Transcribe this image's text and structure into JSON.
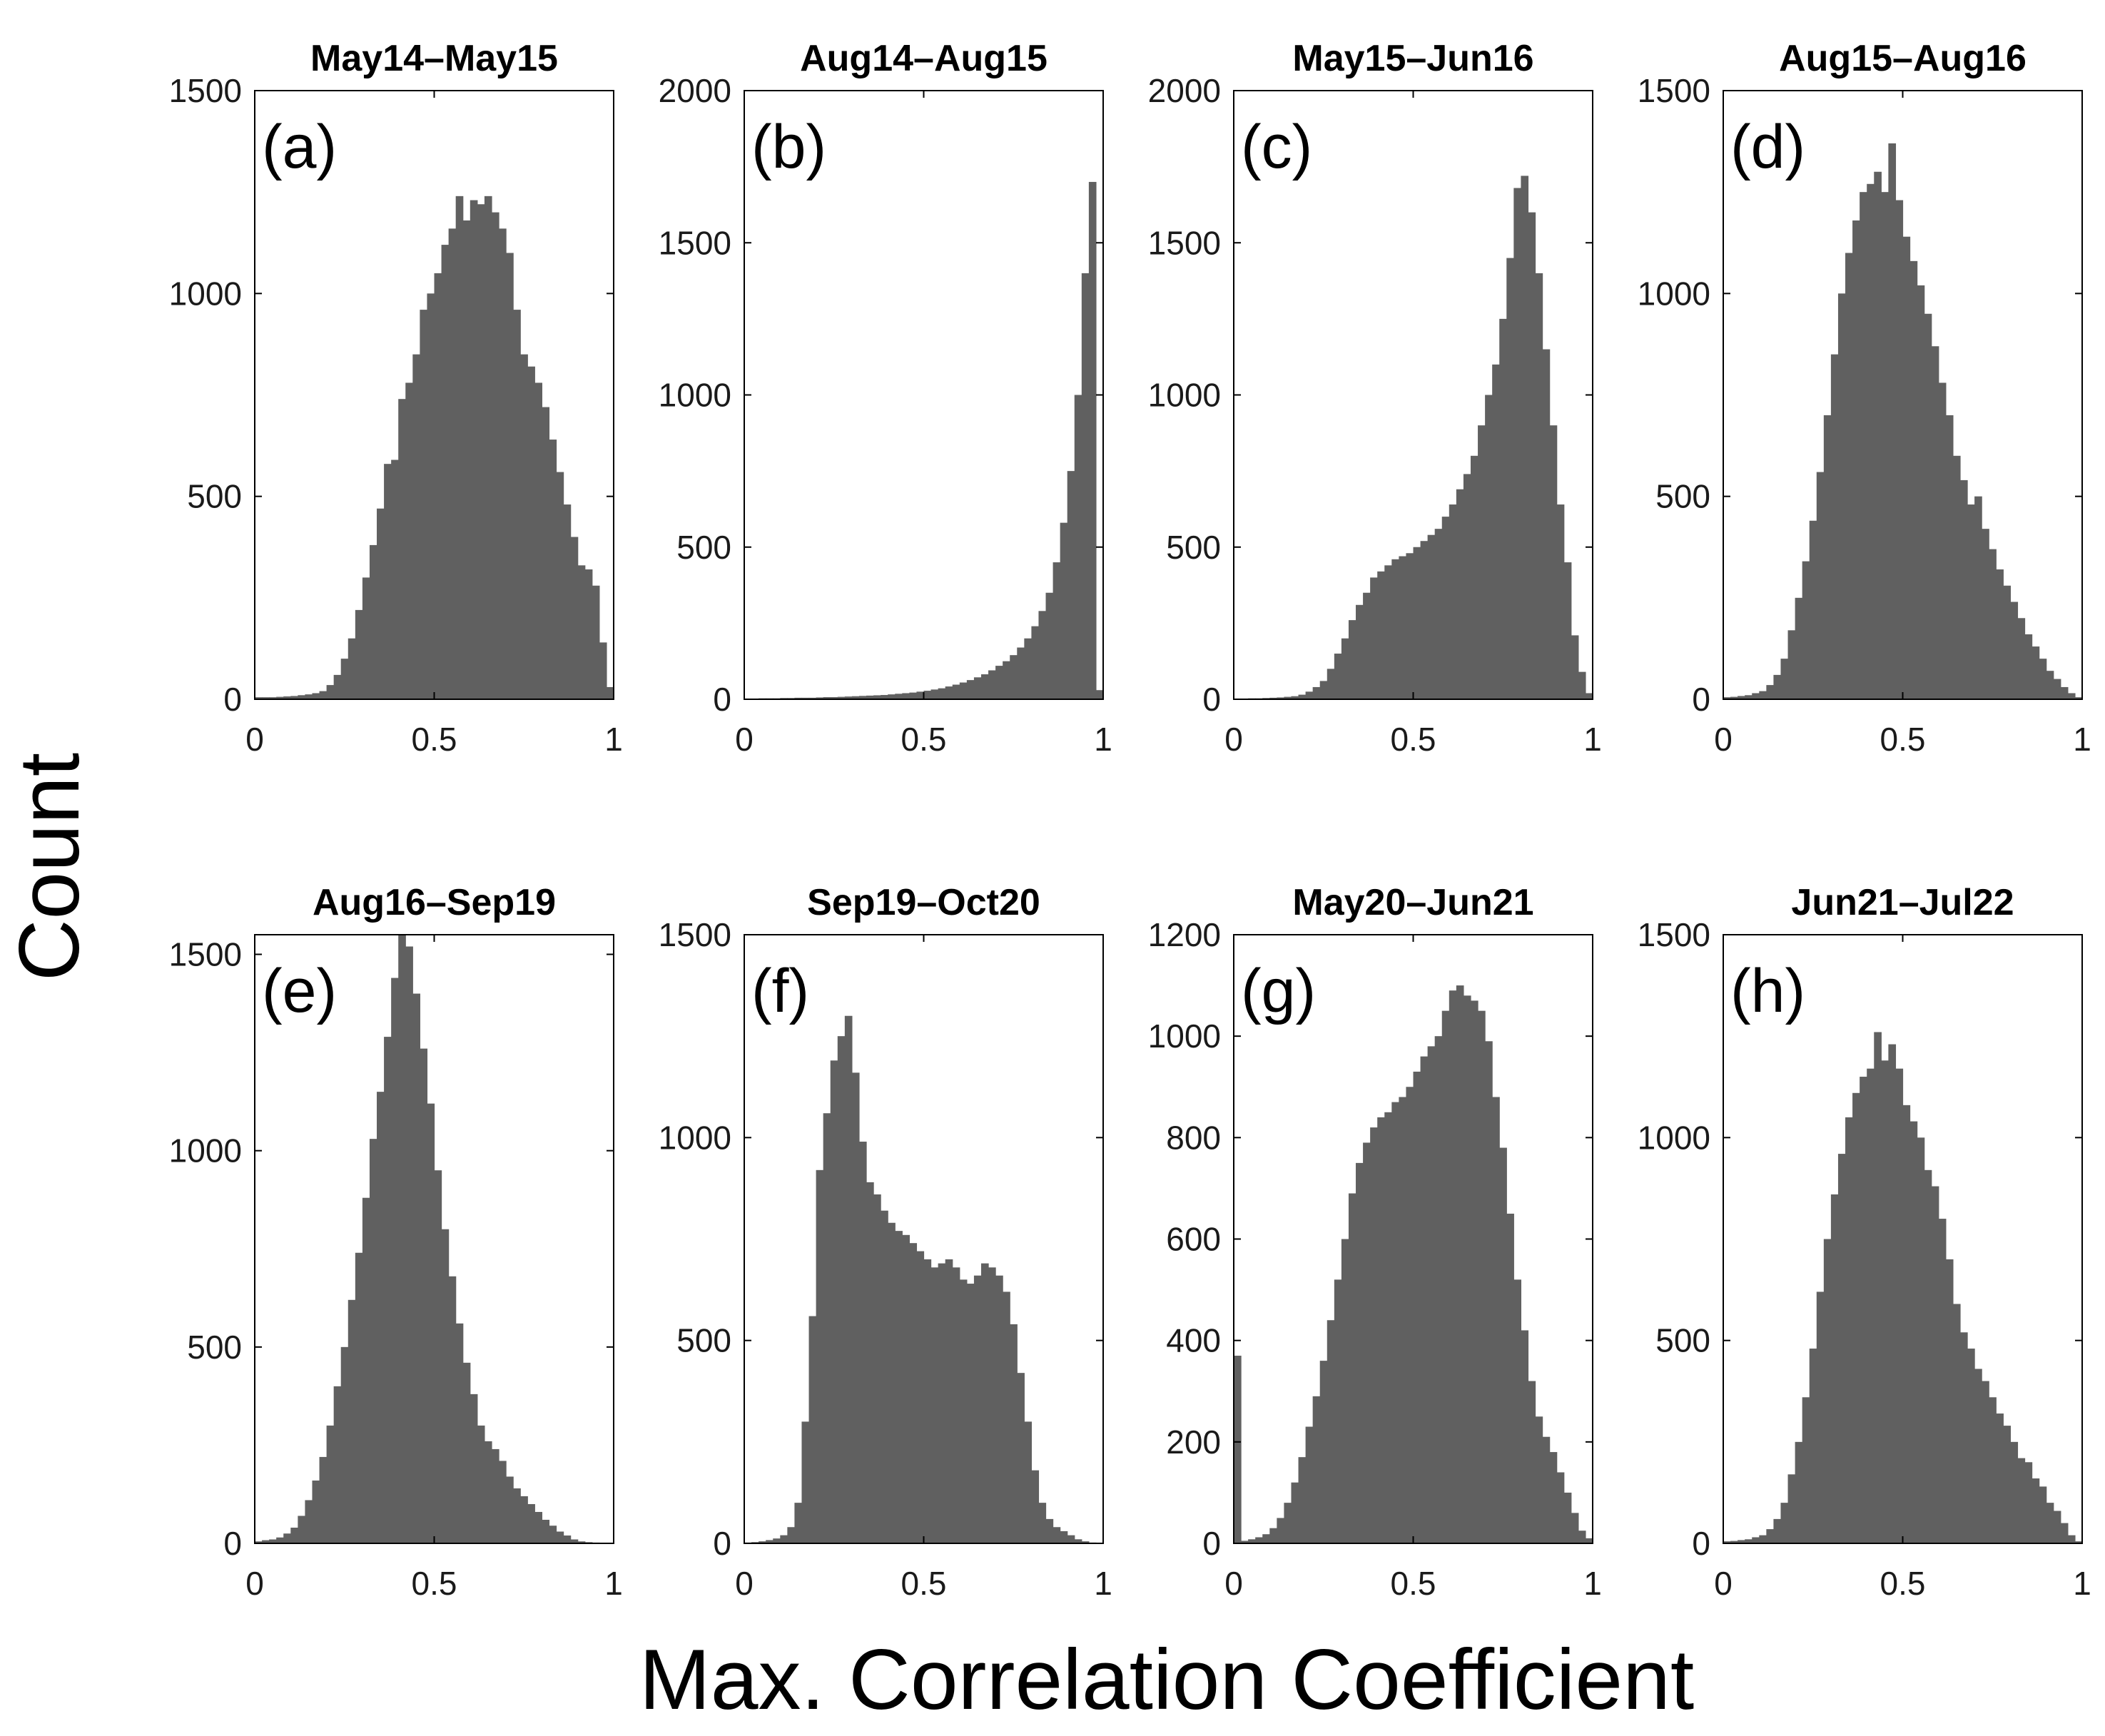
{
  "figure": {
    "ylabel": "Count",
    "xlabel": "Max. Correlation Coefficient"
  },
  "colors": {
    "bar": "#606060",
    "axis": "#000000",
    "text": "#000000"
  },
  "chart_data": [
    {
      "type": "bar",
      "panel": "(a)",
      "title": "May14–May15",
      "xlim": [
        0,
        1
      ],
      "ylim": [
        0,
        1500
      ],
      "xticks": [
        0,
        0.5,
        1
      ],
      "xtick_labels": [
        "0",
        "0.5",
        "1"
      ],
      "yticks": [
        0,
        500,
        1000,
        1500
      ],
      "ytick_labels": [
        "0",
        "500",
        "1000",
        "1500"
      ],
      "x": [
        0.01,
        0.03,
        0.05,
        0.07,
        0.09,
        0.11,
        0.13,
        0.15,
        0.17,
        0.19,
        0.21,
        0.23,
        0.25,
        0.27,
        0.29,
        0.31,
        0.33,
        0.35,
        0.37,
        0.39,
        0.41,
        0.43,
        0.45,
        0.47,
        0.49,
        0.51,
        0.53,
        0.55,
        0.57,
        0.59,
        0.61,
        0.63,
        0.65,
        0.67,
        0.69,
        0.71,
        0.73,
        0.75,
        0.77,
        0.79,
        0.81,
        0.83,
        0.85,
        0.87,
        0.89,
        0.91,
        0.93,
        0.95,
        0.97,
        0.99
      ],
      "values": [
        5,
        5,
        5,
        6,
        7,
        8,
        10,
        12,
        15,
        20,
        35,
        60,
        100,
        150,
        220,
        300,
        380,
        470,
        580,
        590,
        740,
        780,
        850,
        960,
        1000,
        1050,
        1120,
        1160,
        1240,
        1180,
        1230,
        1220,
        1240,
        1200,
        1160,
        1100,
        960,
        850,
        820,
        780,
        720,
        640,
        560,
        480,
        400,
        330,
        320,
        280,
        140,
        30
      ]
    },
    {
      "type": "bar",
      "panel": "(b)",
      "title": "Aug14–Aug15",
      "xlim": [
        0,
        1
      ],
      "ylim": [
        0,
        2000
      ],
      "xticks": [
        0,
        0.5,
        1
      ],
      "xtick_labels": [
        "0",
        "0.5",
        "1"
      ],
      "yticks": [
        0,
        500,
        1000,
        1500,
        2000
      ],
      "ytick_labels": [
        "0",
        "500",
        "1000",
        "1500",
        "2000"
      ],
      "x": [
        0.01,
        0.03,
        0.05,
        0.07,
        0.09,
        0.11,
        0.13,
        0.15,
        0.17,
        0.19,
        0.21,
        0.23,
        0.25,
        0.27,
        0.29,
        0.31,
        0.33,
        0.35,
        0.37,
        0.39,
        0.41,
        0.43,
        0.45,
        0.47,
        0.49,
        0.51,
        0.53,
        0.55,
        0.57,
        0.59,
        0.61,
        0.63,
        0.65,
        0.67,
        0.69,
        0.71,
        0.73,
        0.75,
        0.77,
        0.79,
        0.81,
        0.83,
        0.85,
        0.87,
        0.89,
        0.91,
        0.93,
        0.95,
        0.97,
        0.99
      ],
      "values": [
        2,
        2,
        3,
        3,
        3,
        4,
        4,
        5,
        5,
        5,
        6,
        7,
        7,
        8,
        9,
        10,
        11,
        12,
        13,
        14,
        16,
        18,
        20,
        22,
        25,
        28,
        32,
        36,
        42,
        48,
        55,
        63,
        72,
        82,
        95,
        110,
        125,
        145,
        170,
        200,
        240,
        290,
        350,
        450,
        580,
        750,
        1000,
        1400,
        1700,
        30
      ]
    },
    {
      "type": "bar",
      "panel": "(c)",
      "title": "May15–Jun16",
      "xlim": [
        0,
        1
      ],
      "ylim": [
        0,
        2000
      ],
      "xticks": [
        0,
        0.5,
        1
      ],
      "xtick_labels": [
        "0",
        "0.5",
        "1"
      ],
      "yticks": [
        0,
        500,
        1000,
        1500,
        2000
      ],
      "ytick_labels": [
        "0",
        "500",
        "1000",
        "1500",
        "2000"
      ],
      "x": [
        0.01,
        0.03,
        0.05,
        0.07,
        0.09,
        0.11,
        0.13,
        0.15,
        0.17,
        0.19,
        0.21,
        0.23,
        0.25,
        0.27,
        0.29,
        0.31,
        0.33,
        0.35,
        0.37,
        0.39,
        0.41,
        0.43,
        0.45,
        0.47,
        0.49,
        0.51,
        0.53,
        0.55,
        0.57,
        0.59,
        0.61,
        0.63,
        0.65,
        0.67,
        0.69,
        0.71,
        0.73,
        0.75,
        0.77,
        0.79,
        0.81,
        0.83,
        0.85,
        0.87,
        0.89,
        0.91,
        0.93,
        0.95,
        0.97,
        0.99
      ],
      "values": [
        2,
        2,
        3,
        3,
        4,
        5,
        6,
        8,
        10,
        15,
        25,
        40,
        60,
        100,
        150,
        200,
        260,
        310,
        350,
        400,
        420,
        440,
        460,
        470,
        480,
        500,
        520,
        540,
        560,
        600,
        640,
        690,
        740,
        800,
        900,
        1000,
        1100,
        1250,
        1450,
        1680,
        1720,
        1600,
        1400,
        1150,
        900,
        640,
        450,
        210,
        90,
        20
      ]
    },
    {
      "type": "bar",
      "panel": "(d)",
      "title": "Aug15–Aug16",
      "xlim": [
        0,
        1
      ],
      "ylim": [
        0,
        1500
      ],
      "xticks": [
        0,
        0.5,
        1
      ],
      "xtick_labels": [
        "0",
        "0.5",
        "1"
      ],
      "yticks": [
        0,
        500,
        1000,
        1500
      ],
      "ytick_labels": [
        "0",
        "500",
        "1000",
        "1500"
      ],
      "x": [
        0.01,
        0.03,
        0.05,
        0.07,
        0.09,
        0.11,
        0.13,
        0.15,
        0.17,
        0.19,
        0.21,
        0.23,
        0.25,
        0.27,
        0.29,
        0.31,
        0.33,
        0.35,
        0.37,
        0.39,
        0.41,
        0.43,
        0.45,
        0.47,
        0.49,
        0.51,
        0.53,
        0.55,
        0.57,
        0.59,
        0.61,
        0.63,
        0.65,
        0.67,
        0.69,
        0.71,
        0.73,
        0.75,
        0.77,
        0.79,
        0.81,
        0.83,
        0.85,
        0.87,
        0.89,
        0.91,
        0.93,
        0.95,
        0.97,
        0.99
      ],
      "values": [
        5,
        6,
        8,
        10,
        15,
        20,
        35,
        60,
        100,
        170,
        250,
        340,
        440,
        560,
        700,
        850,
        1000,
        1100,
        1180,
        1250,
        1270,
        1300,
        1250,
        1370,
        1230,
        1140,
        1080,
        1020,
        950,
        870,
        780,
        700,
        600,
        540,
        480,
        500,
        420,
        370,
        320,
        280,
        240,
        200,
        160,
        130,
        100,
        70,
        50,
        30,
        15,
        5
      ]
    },
    {
      "type": "bar",
      "panel": "(e)",
      "title": "Aug16–Sep19",
      "xlim": [
        0,
        1
      ],
      "ylim": [
        0,
        1550
      ],
      "xticks": [
        0,
        0.5,
        1
      ],
      "xtick_labels": [
        "0",
        "0.5",
        "1"
      ],
      "yticks": [
        0,
        500,
        1000,
        1500
      ],
      "ytick_labels": [
        "0",
        "500",
        "1000",
        "1500"
      ],
      "x": [
        0.01,
        0.03,
        0.05,
        0.07,
        0.09,
        0.11,
        0.13,
        0.15,
        0.17,
        0.19,
        0.21,
        0.23,
        0.25,
        0.27,
        0.29,
        0.31,
        0.33,
        0.35,
        0.37,
        0.39,
        0.41,
        0.43,
        0.45,
        0.47,
        0.49,
        0.51,
        0.53,
        0.55,
        0.57,
        0.59,
        0.61,
        0.63,
        0.65,
        0.67,
        0.69,
        0.71,
        0.73,
        0.75,
        0.77,
        0.79,
        0.81,
        0.83,
        0.85,
        0.87,
        0.89,
        0.91,
        0.93,
        0.95,
        0.97,
        0.99
      ],
      "values": [
        5,
        8,
        10,
        15,
        25,
        40,
        70,
        110,
        160,
        220,
        300,
        400,
        500,
        620,
        740,
        880,
        1030,
        1150,
        1290,
        1440,
        1560,
        1520,
        1400,
        1260,
        1120,
        950,
        800,
        680,
        560,
        460,
        380,
        300,
        260,
        240,
        210,
        170,
        140,
        120,
        100,
        80,
        60,
        45,
        30,
        20,
        10,
        5,
        3,
        2,
        1,
        1
      ]
    },
    {
      "type": "bar",
      "panel": "(f)",
      "title": "Sep19–Oct20",
      "xlim": [
        0,
        1
      ],
      "ylim": [
        0,
        1500
      ],
      "xticks": [
        0,
        0.5,
        1
      ],
      "xtick_labels": [
        "0",
        "0.5",
        "1"
      ],
      "yticks": [
        0,
        500,
        1000,
        1500
      ],
      "ytick_labels": [
        "0",
        "500",
        "1000",
        "1500"
      ],
      "x": [
        0.01,
        0.03,
        0.05,
        0.07,
        0.09,
        0.11,
        0.13,
        0.15,
        0.17,
        0.19,
        0.21,
        0.23,
        0.25,
        0.27,
        0.29,
        0.31,
        0.33,
        0.35,
        0.37,
        0.39,
        0.41,
        0.43,
        0.45,
        0.47,
        0.49,
        0.51,
        0.53,
        0.55,
        0.57,
        0.59,
        0.61,
        0.63,
        0.65,
        0.67,
        0.69,
        0.71,
        0.73,
        0.75,
        0.77,
        0.79,
        0.81,
        0.83,
        0.85,
        0.87,
        0.89,
        0.91,
        0.93,
        0.95,
        0.97,
        0.99
      ],
      "values": [
        2,
        3,
        5,
        8,
        12,
        20,
        40,
        100,
        300,
        560,
        920,
        1060,
        1190,
        1250,
        1300,
        1160,
        990,
        890,
        860,
        820,
        790,
        770,
        760,
        740,
        720,
        700,
        680,
        690,
        700,
        680,
        650,
        640,
        660,
        690,
        680,
        660,
        620,
        540,
        420,
        300,
        180,
        100,
        60,
        40,
        30,
        20,
        10,
        5,
        2,
        1
      ]
    },
    {
      "type": "bar",
      "panel": "(g)",
      "title": "May20–Jun21",
      "xlim": [
        0,
        1
      ],
      "ylim": [
        0,
        1200
      ],
      "xticks": [
        0,
        0.5,
        1
      ],
      "xtick_labels": [
        "0",
        "0.5",
        "1"
      ],
      "yticks": [
        0,
        200,
        400,
        600,
        800,
        1000,
        1200
      ],
      "ytick_labels": [
        "0",
        "200",
        "400",
        "600",
        "800",
        "1000",
        "1200"
      ],
      "x": [
        0.01,
        0.03,
        0.05,
        0.07,
        0.09,
        0.11,
        0.13,
        0.15,
        0.17,
        0.19,
        0.21,
        0.23,
        0.25,
        0.27,
        0.29,
        0.31,
        0.33,
        0.35,
        0.37,
        0.39,
        0.41,
        0.43,
        0.45,
        0.47,
        0.49,
        0.51,
        0.53,
        0.55,
        0.57,
        0.59,
        0.61,
        0.63,
        0.65,
        0.67,
        0.69,
        0.71,
        0.73,
        0.75,
        0.77,
        0.79,
        0.81,
        0.83,
        0.85,
        0.87,
        0.89,
        0.91,
        0.93,
        0.95,
        0.97,
        0.99
      ],
      "values": [
        370,
        5,
        8,
        12,
        18,
        30,
        50,
        80,
        120,
        170,
        230,
        290,
        360,
        440,
        520,
        600,
        690,
        750,
        790,
        820,
        840,
        850,
        870,
        880,
        900,
        930,
        960,
        980,
        1000,
        1050,
        1090,
        1100,
        1080,
        1070,
        1050,
        990,
        880,
        780,
        650,
        520,
        420,
        320,
        250,
        210,
        180,
        140,
        100,
        60,
        25,
        10
      ]
    },
    {
      "type": "bar",
      "panel": "(h)",
      "title": "Jun21–Jul22",
      "xlim": [
        0,
        1
      ],
      "ylim": [
        0,
        1500
      ],
      "xticks": [
        0,
        0.5,
        1
      ],
      "xtick_labels": [
        "0",
        "0.5",
        "1"
      ],
      "yticks": [
        0,
        500,
        1000,
        1500
      ],
      "ytick_labels": [
        "0",
        "500",
        "1000",
        "1500"
      ],
      "x": [
        0.01,
        0.03,
        0.05,
        0.07,
        0.09,
        0.11,
        0.13,
        0.15,
        0.17,
        0.19,
        0.21,
        0.23,
        0.25,
        0.27,
        0.29,
        0.31,
        0.33,
        0.35,
        0.37,
        0.39,
        0.41,
        0.43,
        0.45,
        0.47,
        0.49,
        0.51,
        0.53,
        0.55,
        0.57,
        0.59,
        0.61,
        0.63,
        0.65,
        0.67,
        0.69,
        0.71,
        0.73,
        0.75,
        0.77,
        0.79,
        0.81,
        0.83,
        0.85,
        0.87,
        0.89,
        0.91,
        0.93,
        0.95,
        0.97,
        0.99
      ],
      "values": [
        5,
        6,
        8,
        10,
        15,
        20,
        35,
        60,
        100,
        170,
        250,
        360,
        480,
        620,
        750,
        860,
        960,
        1050,
        1110,
        1150,
        1170,
        1260,
        1190,
        1230,
        1170,
        1080,
        1040,
        1000,
        920,
        880,
        800,
        700,
        590,
        520,
        480,
        430,
        400,
        360,
        320,
        290,
        250,
        210,
        200,
        160,
        140,
        100,
        80,
        50,
        20,
        5
      ]
    }
  ]
}
